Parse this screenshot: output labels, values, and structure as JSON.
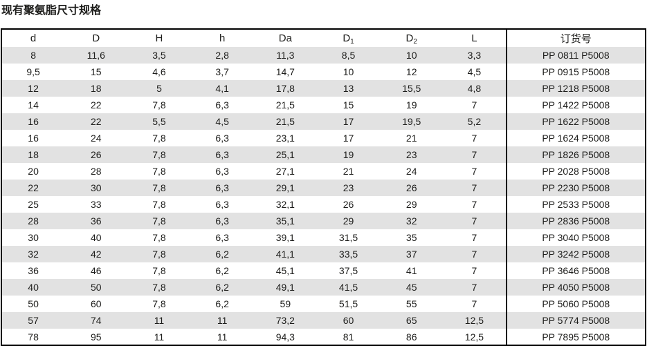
{
  "title": "现有聚氨脂尺寸规格",
  "table": {
    "column_keys": [
      "d-lower",
      "d-upper",
      "h-upper",
      "h-lower",
      "da",
      "d1",
      "d2",
      "l",
      "order-number"
    ],
    "columns": [
      {
        "label": "d",
        "sub": ""
      },
      {
        "label": "D",
        "sub": ""
      },
      {
        "label": "H",
        "sub": ""
      },
      {
        "label": "h",
        "sub": ""
      },
      {
        "label": "Da",
        "sub": ""
      },
      {
        "label": "D",
        "sub": "1"
      },
      {
        "label": "D",
        "sub": "2"
      },
      {
        "label": "L",
        "sub": ""
      },
      {
        "label": "订货号",
        "sub": ""
      }
    ],
    "rows": [
      [
        "8",
        "11,6",
        "3,5",
        "2,8",
        "11,3",
        "8,5",
        "10",
        "3,3",
        "PP 0811 P5008"
      ],
      [
        "9,5",
        "15",
        "4,6",
        "3,7",
        "14,7",
        "10",
        "12",
        "4,5",
        "PP 0915 P5008"
      ],
      [
        "12",
        "18",
        "5",
        "4,1",
        "17,8",
        "13",
        "15,5",
        "4,8",
        "PP 1218 P5008"
      ],
      [
        "14",
        "22",
        "7,8",
        "6,3",
        "21,5",
        "15",
        "19",
        "7",
        "PP 1422 P5008"
      ],
      [
        "16",
        "22",
        "5,5",
        "4,5",
        "21,5",
        "17",
        "19,5",
        "5,2",
        "PP 1622 P5008"
      ],
      [
        "16",
        "24",
        "7,8",
        "6,3",
        "23,1",
        "17",
        "21",
        "7",
        "PP 1624 P5008"
      ],
      [
        "18",
        "26",
        "7,8",
        "6,3",
        "25,1",
        "19",
        "23",
        "7",
        "PP 1826 P5008"
      ],
      [
        "20",
        "28",
        "7,8",
        "6,3",
        "27,1",
        "21",
        "24",
        "7",
        "PP 2028 P5008"
      ],
      [
        "22",
        "30",
        "7,8",
        "6,3",
        "29,1",
        "23",
        "26",
        "7",
        "PP 2230 P5008"
      ],
      [
        "25",
        "33",
        "7,8",
        "6,3",
        "32,1",
        "26",
        "29",
        "7",
        "PP 2533 P5008"
      ],
      [
        "28",
        "36",
        "7,8",
        "6,3",
        "35,1",
        "29",
        "32",
        "7",
        "PP 2836 P5008"
      ],
      [
        "30",
        "40",
        "7,8",
        "6,3",
        "39,1",
        "31,5",
        "35",
        "7",
        "PP 3040 P5008"
      ],
      [
        "32",
        "42",
        "7,8",
        "6,2",
        "41,1",
        "33,5",
        "37",
        "7",
        "PP 3242 P5008"
      ],
      [
        "36",
        "46",
        "7,8",
        "6,2",
        "45,1",
        "37,5",
        "41",
        "7",
        "PP 3646 P5008"
      ],
      [
        "40",
        "50",
        "7,8",
        "6,2",
        "49,1",
        "41,5",
        "45",
        "7",
        "PP 4050 P5008"
      ],
      [
        "50",
        "60",
        "7,8",
        "6,2",
        "59",
        "51,5",
        "55",
        "7",
        "PP 5060 P5008"
      ],
      [
        "57",
        "74",
        "11",
        "11",
        "73,2",
        "60",
        "65",
        "12,5",
        "PP 5774 P5008"
      ],
      [
        "78",
        "95",
        "11",
        "11",
        "94,3",
        "81",
        "86",
        "12,5",
        "PP 7895 P5008"
      ]
    ]
  },
  "colors": {
    "stripe": "#e2e2e2",
    "border": "#000000",
    "text": "#1d1d1b",
    "background": "#ffffff"
  }
}
